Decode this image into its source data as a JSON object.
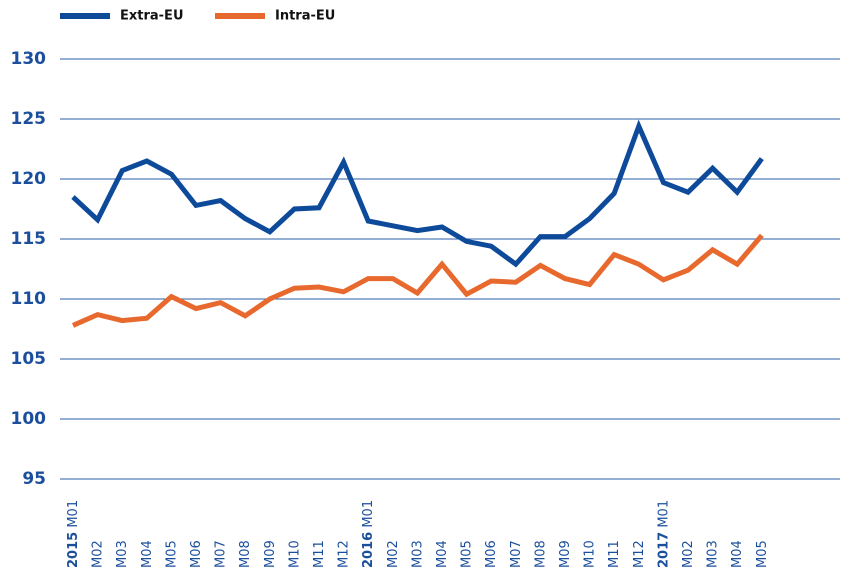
{
  "chart_data": {
    "type": "line",
    "category_groups": [
      {
        "name": "2015",
        "categories": [
          "M01",
          "M02",
          "M03",
          "M04",
          "M05",
          "M06",
          "M07",
          "M08",
          "M09",
          "M10",
          "M11",
          "M12"
        ]
      },
      {
        "name": "2016",
        "categories": [
          "M01",
          "M02",
          "M03",
          "M04",
          "M05",
          "M06",
          "M07",
          "M08",
          "M09",
          "M10",
          "M11",
          "M12"
        ]
      },
      {
        "name": "2017",
        "categories": [
          "M01",
          "M02",
          "M03",
          "M04",
          "M05"
        ]
      }
    ],
    "series": [
      {
        "name": "Extra-EU",
        "color": "#0d4a9a",
        "values": [
          118.5,
          116.6,
          120.7,
          121.5,
          120.4,
          117.8,
          118.2,
          116.7,
          115.6,
          117.5,
          117.6,
          121.4,
          116.5,
          116.1,
          115.7,
          116.0,
          114.8,
          114.4,
          112.9,
          115.2,
          115.2,
          116.7,
          118.8,
          124.4,
          119.7,
          118.9,
          120.9,
          118.9,
          121.7
        ]
      },
      {
        "name": "Intra-EU",
        "color": "#e8692e",
        "values": [
          107.8,
          108.7,
          108.2,
          108.4,
          110.2,
          109.2,
          109.7,
          108.6,
          110.0,
          110.9,
          111.0,
          110.6,
          111.7,
          111.7,
          110.5,
          112.9,
          110.4,
          111.5,
          111.4,
          112.8,
          111.7,
          111.2,
          113.7,
          112.9,
          111.6,
          112.4,
          114.1,
          112.9,
          115.3
        ]
      }
    ],
    "ylim": [
      95,
      130
    ],
    "yticks": [
      95,
      100,
      105,
      110,
      115,
      120,
      125,
      130
    ],
    "grid": true,
    "legend": "top-left"
  }
}
